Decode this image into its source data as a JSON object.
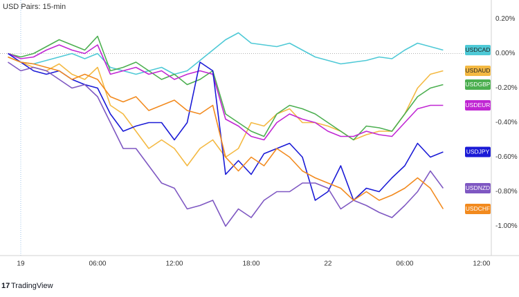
{
  "chart_data": {
    "type": "line",
    "title": "USD Pairs: 15-min",
    "footer": "TradingView",
    "x": [
      -1,
      0,
      1,
      2,
      3,
      4,
      5,
      6,
      7,
      8,
      9,
      10,
      11,
      12,
      13,
      14,
      15,
      16,
      17,
      18,
      19,
      20,
      21,
      22,
      23,
      24,
      25,
      26,
      27,
      28,
      29,
      30,
      31,
      32,
      33
    ],
    "xlim": [
      -1.62,
      36.76
    ],
    "xticks": [
      {
        "value": 0,
        "label": "19"
      },
      {
        "value": 6,
        "label": "06:00"
      },
      {
        "value": 12,
        "label": "12:00"
      },
      {
        "value": 18,
        "label": "18:00"
      },
      {
        "value": 24,
        "label": "22"
      },
      {
        "value": 30,
        "label": "06:00"
      },
      {
        "value": 36,
        "label": "12:00"
      }
    ],
    "ylim": [
      -1.17,
      0.31
    ],
    "yticks": [
      {
        "value": 0.2,
        "label": "0.20%"
      },
      {
        "value": 0,
        "label": "0.00%"
      },
      {
        "value": -0.2,
        "label": "-0.20%"
      },
      {
        "value": -0.4,
        "label": "-0.40%"
      },
      {
        "value": -0.6,
        "label": "-0.60%"
      },
      {
        "value": -0.8,
        "label": "-0.80%"
      },
      {
        "value": -1.0,
        "label": "-1.00%"
      }
    ],
    "series": [
      {
        "name": "USDCAD",
        "color": "#4ec9d6",
        "values": [
          -0.02,
          -0.05,
          -0.06,
          -0.04,
          -0.02,
          0.0,
          -0.03,
          0.0,
          -0.08,
          -0.1,
          -0.12,
          -0.1,
          -0.08,
          -0.12,
          -0.1,
          -0.04,
          0.02,
          0.08,
          0.12,
          0.06,
          0.05,
          0.04,
          0.06,
          0.02,
          -0.02,
          -0.04,
          -0.06,
          -0.05,
          -0.04,
          -0.02,
          -0.03,
          0.02,
          0.06,
          0.04,
          0.02
        ]
      },
      {
        "name": "USDAUD",
        "color": "#f4b942",
        "values": [
          -0.02,
          -0.05,
          -0.08,
          -0.1,
          -0.06,
          -0.12,
          -0.15,
          -0.08,
          -0.3,
          -0.35,
          -0.45,
          -0.55,
          -0.5,
          -0.55,
          -0.65,
          -0.55,
          -0.5,
          -0.6,
          -0.55,
          -0.4,
          -0.42,
          -0.35,
          -0.32,
          -0.4,
          -0.4,
          -0.42,
          -0.45,
          -0.5,
          -0.47,
          -0.45,
          -0.45,
          -0.35,
          -0.2,
          -0.12,
          -0.1
        ]
      },
      {
        "name": "USDGBP",
        "color": "#4caf50",
        "values": [
          0,
          -0.02,
          0.0,
          0.04,
          0.08,
          0.05,
          0.02,
          0.1,
          -0.1,
          -0.08,
          -0.05,
          -0.1,
          -0.15,
          -0.12,
          -0.18,
          -0.15,
          -0.1,
          -0.35,
          -0.4,
          -0.45,
          -0.48,
          -0.35,
          -0.3,
          -0.32,
          -0.35,
          -0.4,
          -0.45,
          -0.5,
          -0.42,
          -0.43,
          -0.45,
          -0.35,
          -0.25,
          -0.2,
          -0.18
        ]
      },
      {
        "name": "USDEUR",
        "color": "#c026d3",
        "values": [
          0,
          -0.03,
          -0.02,
          0.02,
          0.05,
          0.02,
          0.0,
          0.05,
          -0.12,
          -0.1,
          -0.08,
          -0.12,
          -0.1,
          -0.15,
          -0.12,
          -0.1,
          -0.12,
          -0.38,
          -0.42,
          -0.48,
          -0.5,
          -0.4,
          -0.35,
          -0.38,
          -0.4,
          -0.45,
          -0.48,
          -0.48,
          -0.45,
          -0.47,
          -0.48,
          -0.4,
          -0.32,
          -0.3,
          -0.3
        ]
      },
      {
        "name": "USDJPY",
        "color": "#1a1ad6",
        "values": [
          0,
          -0.05,
          -0.1,
          -0.12,
          -0.1,
          -0.15,
          -0.18,
          -0.2,
          -0.35,
          -0.45,
          -0.42,
          -0.4,
          -0.4,
          -0.5,
          -0.4,
          -0.05,
          -0.1,
          -0.7,
          -0.62,
          -0.7,
          -0.58,
          -0.55,
          -0.52,
          -0.6,
          -0.85,
          -0.8,
          -0.65,
          -0.85,
          -0.78,
          -0.8,
          -0.72,
          -0.65,
          -0.52,
          -0.6,
          -0.57
        ]
      },
      {
        "name": "USDNZD",
        "color": "#7e57c2",
        "values": [
          -0.05,
          -0.1,
          -0.08,
          -0.1,
          -0.15,
          -0.2,
          -0.18,
          -0.25,
          -0.4,
          -0.55,
          -0.55,
          -0.65,
          -0.75,
          -0.78,
          -0.9,
          -0.88,
          -0.85,
          -1.0,
          -0.9,
          -0.95,
          -0.85,
          -0.8,
          -0.8,
          -0.75,
          -0.75,
          -0.78,
          -0.9,
          -0.85,
          -0.88,
          -0.92,
          -0.95,
          -0.88,
          -0.8,
          -0.68,
          -0.78
        ]
      },
      {
        "name": "USDCHF",
        "color": "#f28a1e",
        "values": [
          -0.02,
          -0.05,
          -0.06,
          -0.08,
          -0.1,
          -0.15,
          -0.12,
          -0.15,
          -0.25,
          -0.28,
          -0.25,
          -0.33,
          -0.3,
          -0.27,
          -0.33,
          -0.35,
          -0.3,
          -0.6,
          -0.68,
          -0.6,
          -0.65,
          -0.55,
          -0.6,
          -0.68,
          -0.72,
          -0.75,
          -0.78,
          -0.85,
          -0.8,
          -0.85,
          -0.82,
          -0.78,
          -0.72,
          -0.78,
          -0.9
        ]
      }
    ]
  }
}
